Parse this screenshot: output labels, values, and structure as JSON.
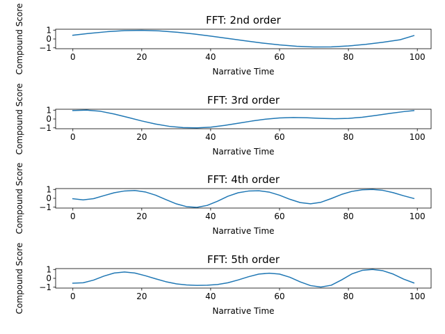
{
  "figure": {
    "background": "#ffffff",
    "line_color": "#1f77b4"
  },
  "chart_data": [
    {
      "type": "line",
      "title": "FFT: 2nd order",
      "xlabel": "Narrative Time",
      "ylabel": "Compound Score",
      "xlim": [
        -5,
        104
      ],
      "ylim": [
        -1.1,
        1.1
      ],
      "xticks": [
        0,
        20,
        40,
        60,
        80,
        100
      ],
      "xtick_labels": [
        "0",
        "20",
        "40",
        "60",
        "80",
        "100"
      ],
      "yticks": [
        -1,
        0,
        1
      ],
      "ytick_labels": [
        "−1",
        "0",
        "1"
      ],
      "grid": false,
      "series": [
        {
          "color": "#1f77b4",
          "x": [
            0,
            5,
            10,
            15,
            20,
            25,
            30,
            35,
            40,
            45,
            50,
            55,
            60,
            65,
            70,
            75,
            80,
            85,
            90,
            95,
            99
          ],
          "y": [
            0.42,
            0.64,
            0.82,
            0.94,
            0.97,
            0.91,
            0.77,
            0.57,
            0.32,
            0.06,
            -0.21,
            -0.46,
            -0.67,
            -0.82,
            -0.9,
            -0.89,
            -0.79,
            -0.61,
            -0.37,
            -0.09,
            0.38
          ]
        }
      ]
    },
    {
      "type": "line",
      "title": "FFT: 3rd order",
      "xlabel": "Narrative Time",
      "ylabel": "Compound Score",
      "xlim": [
        -5,
        104
      ],
      "ylim": [
        -1.1,
        1.1
      ],
      "xticks": [
        0,
        20,
        40,
        60,
        80,
        100
      ],
      "xtick_labels": [
        "0",
        "20",
        "40",
        "60",
        "80",
        "100"
      ],
      "yticks": [
        -1,
        0,
        1
      ],
      "ytick_labels": [
        "−1",
        "0",
        "1"
      ],
      "grid": false,
      "series": [
        {
          "color": "#1f77b4",
          "x": [
            0,
            4,
            8,
            12,
            16,
            20,
            24,
            28,
            32,
            36,
            40,
            44,
            48,
            52,
            56,
            60,
            64,
            68,
            72,
            76,
            80,
            84,
            88,
            92,
            96,
            99
          ],
          "y": [
            0.95,
            1.0,
            0.87,
            0.56,
            0.18,
            -0.22,
            -0.57,
            -0.83,
            -0.97,
            -1.0,
            -0.92,
            -0.73,
            -0.48,
            -0.23,
            -0.02,
            0.12,
            0.17,
            0.14,
            0.07,
            0.03,
            0.07,
            0.2,
            0.4,
            0.63,
            0.83,
            0.95
          ]
        }
      ]
    },
    {
      "type": "line",
      "title": "FFT: 4th order",
      "xlabel": "Narrative Time",
      "ylabel": "Compound Score",
      "xlim": [
        -5,
        104
      ],
      "ylim": [
        -1.1,
        1.1
      ],
      "xticks": [
        0,
        20,
        40,
        60,
        80,
        100
      ],
      "xtick_labels": [
        "0",
        "20",
        "40",
        "60",
        "80",
        "100"
      ],
      "yticks": [
        -1,
        0,
        1
      ],
      "ytick_labels": [
        "−1",
        "0",
        "1"
      ],
      "grid": false,
      "series": [
        {
          "color": "#1f77b4",
          "x": [
            0,
            3,
            6,
            9,
            12,
            15,
            18,
            21,
            24,
            27,
            30,
            33,
            36,
            39,
            42,
            45,
            48,
            51,
            54,
            57,
            60,
            63,
            66,
            69,
            72,
            75,
            78,
            81,
            84,
            87,
            90,
            93,
            96,
            99
          ],
          "y": [
            -0.05,
            -0.18,
            -0.04,
            0.3,
            0.63,
            0.83,
            0.88,
            0.72,
            0.36,
            -0.14,
            -0.62,
            -0.94,
            -1.02,
            -0.8,
            -0.33,
            0.23,
            0.63,
            0.82,
            0.85,
            0.7,
            0.35,
            -0.11,
            -0.48,
            -0.62,
            -0.45,
            -0.03,
            0.44,
            0.78,
            0.96,
            1.0,
            0.9,
            0.64,
            0.29,
            -0.02
          ]
        }
      ]
    },
    {
      "type": "line",
      "title": "FFT: 5th order",
      "xlabel": "Narrative Time",
      "ylabel": "Compound Score",
      "xlim": [
        -5,
        104
      ],
      "ylim": [
        -1.1,
        1.1
      ],
      "xticks": [
        0,
        20,
        40,
        60,
        80,
        100
      ],
      "xtick_labels": [
        "0",
        "20",
        "40",
        "60",
        "80",
        "100"
      ],
      "yticks": [
        -1,
        0,
        1
      ],
      "ytick_labels": [
        "−1",
        "0",
        "1"
      ],
      "grid": false,
      "series": [
        {
          "color": "#1f77b4",
          "x": [
            0,
            3,
            6,
            9,
            12,
            15,
            18,
            21,
            24,
            27,
            30,
            33,
            36,
            39,
            42,
            45,
            48,
            51,
            54,
            57,
            60,
            63,
            66,
            69,
            72,
            75,
            78,
            81,
            84,
            87,
            90,
            93,
            96,
            99
          ],
          "y": [
            -0.55,
            -0.5,
            -0.2,
            0.25,
            0.6,
            0.72,
            0.6,
            0.3,
            -0.05,
            -0.38,
            -0.62,
            -0.75,
            -0.8,
            -0.78,
            -0.7,
            -0.5,
            -0.18,
            0.18,
            0.48,
            0.58,
            0.48,
            0.12,
            -0.4,
            -0.82,
            -0.98,
            -0.78,
            -0.18,
            0.5,
            0.9,
            1.0,
            0.86,
            0.48,
            -0.08,
            -0.52
          ]
        }
      ]
    }
  ]
}
